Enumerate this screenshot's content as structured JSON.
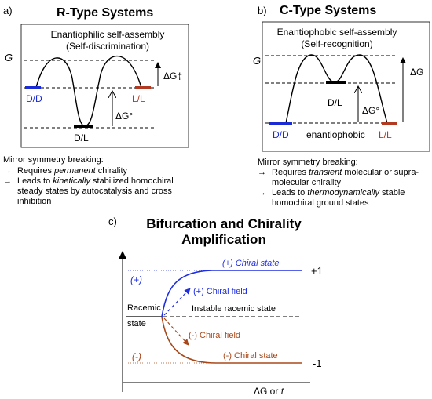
{
  "panel_a": {
    "letter": "a)",
    "title": "R-Type Systems",
    "subtitle_1": "Enantiophilic self-assembly",
    "subtitle_2": "(Self-discrimination)",
    "axis_g": "G",
    "label_dd": "D/D",
    "label_ll": "L/L",
    "label_dl": "D/L",
    "delta_g_ts": "ΔG‡",
    "delta_g_0": "ΔG°",
    "text_heading": "Mirror symmetry breaking:",
    "text_bullet_1_a": "Requires ",
    "text_bullet_1_b": "permanent",
    "text_bullet_1_c": " chirality",
    "text_bullet_2_line1_a": "Leads to ",
    "text_bullet_2_line1_b": "kinetically",
    "text_bullet_2_line1_c": " stabilized homochiral",
    "text_bullet_2_line2": "steady states by autocatalysis and cross",
    "text_bullet_2_line3": "inhibition"
  },
  "panel_b": {
    "letter": "b)",
    "title": "C-Type Systems",
    "subtitle_1": "Enantiophobic self-assembly",
    "subtitle_2": "(Self-recognition)",
    "axis_g": "G",
    "label_dl": "D/L",
    "label_dd": "D/D",
    "label_ll": "L/L",
    "label_enantiophobic": "enantiophobic",
    "delta_g": "ΔG",
    "delta_g_0": "ΔG°",
    "text_heading": "Mirror symmetry breaking:",
    "text_bullet_1_line1_a": "Requires ",
    "text_bullet_1_line1_b": "transient",
    "text_bullet_1_line1_c": " molecular or supra-",
    "text_bullet_1_line2": "molecular chirality",
    "text_bullet_2_line1_a": "Leads to ",
    "text_bullet_2_line1_b": "thermodynamically",
    "text_bullet_2_line1_c": " stable",
    "text_bullet_2_line2": "homochiral ground states"
  },
  "panel_c": {
    "letter": "c)",
    "title_1": "Bifurcation and Chirality",
    "title_2": "Amplification",
    "plus_region": "(+)",
    "minus_region": "(-)",
    "chiral_state_plus": "(+) Chiral state",
    "chiral_state_minus": "(-) Chiral state",
    "chiral_field_plus": "(+) Chiral field",
    "chiral_field_minus": "(-) Chiral field",
    "racemic": "Racemic",
    "state": "state",
    "instable": "Instable racemic state",
    "value_plus": "+1",
    "value_minus": "-1",
    "x_axis_a": "ΔG or ",
    "x_axis_b": "t"
  },
  "colors": {
    "blue": "#1a2bd6",
    "red": "#b33a22",
    "line_plus": "#1f2ee0",
    "line_minus": "#a8481a"
  }
}
